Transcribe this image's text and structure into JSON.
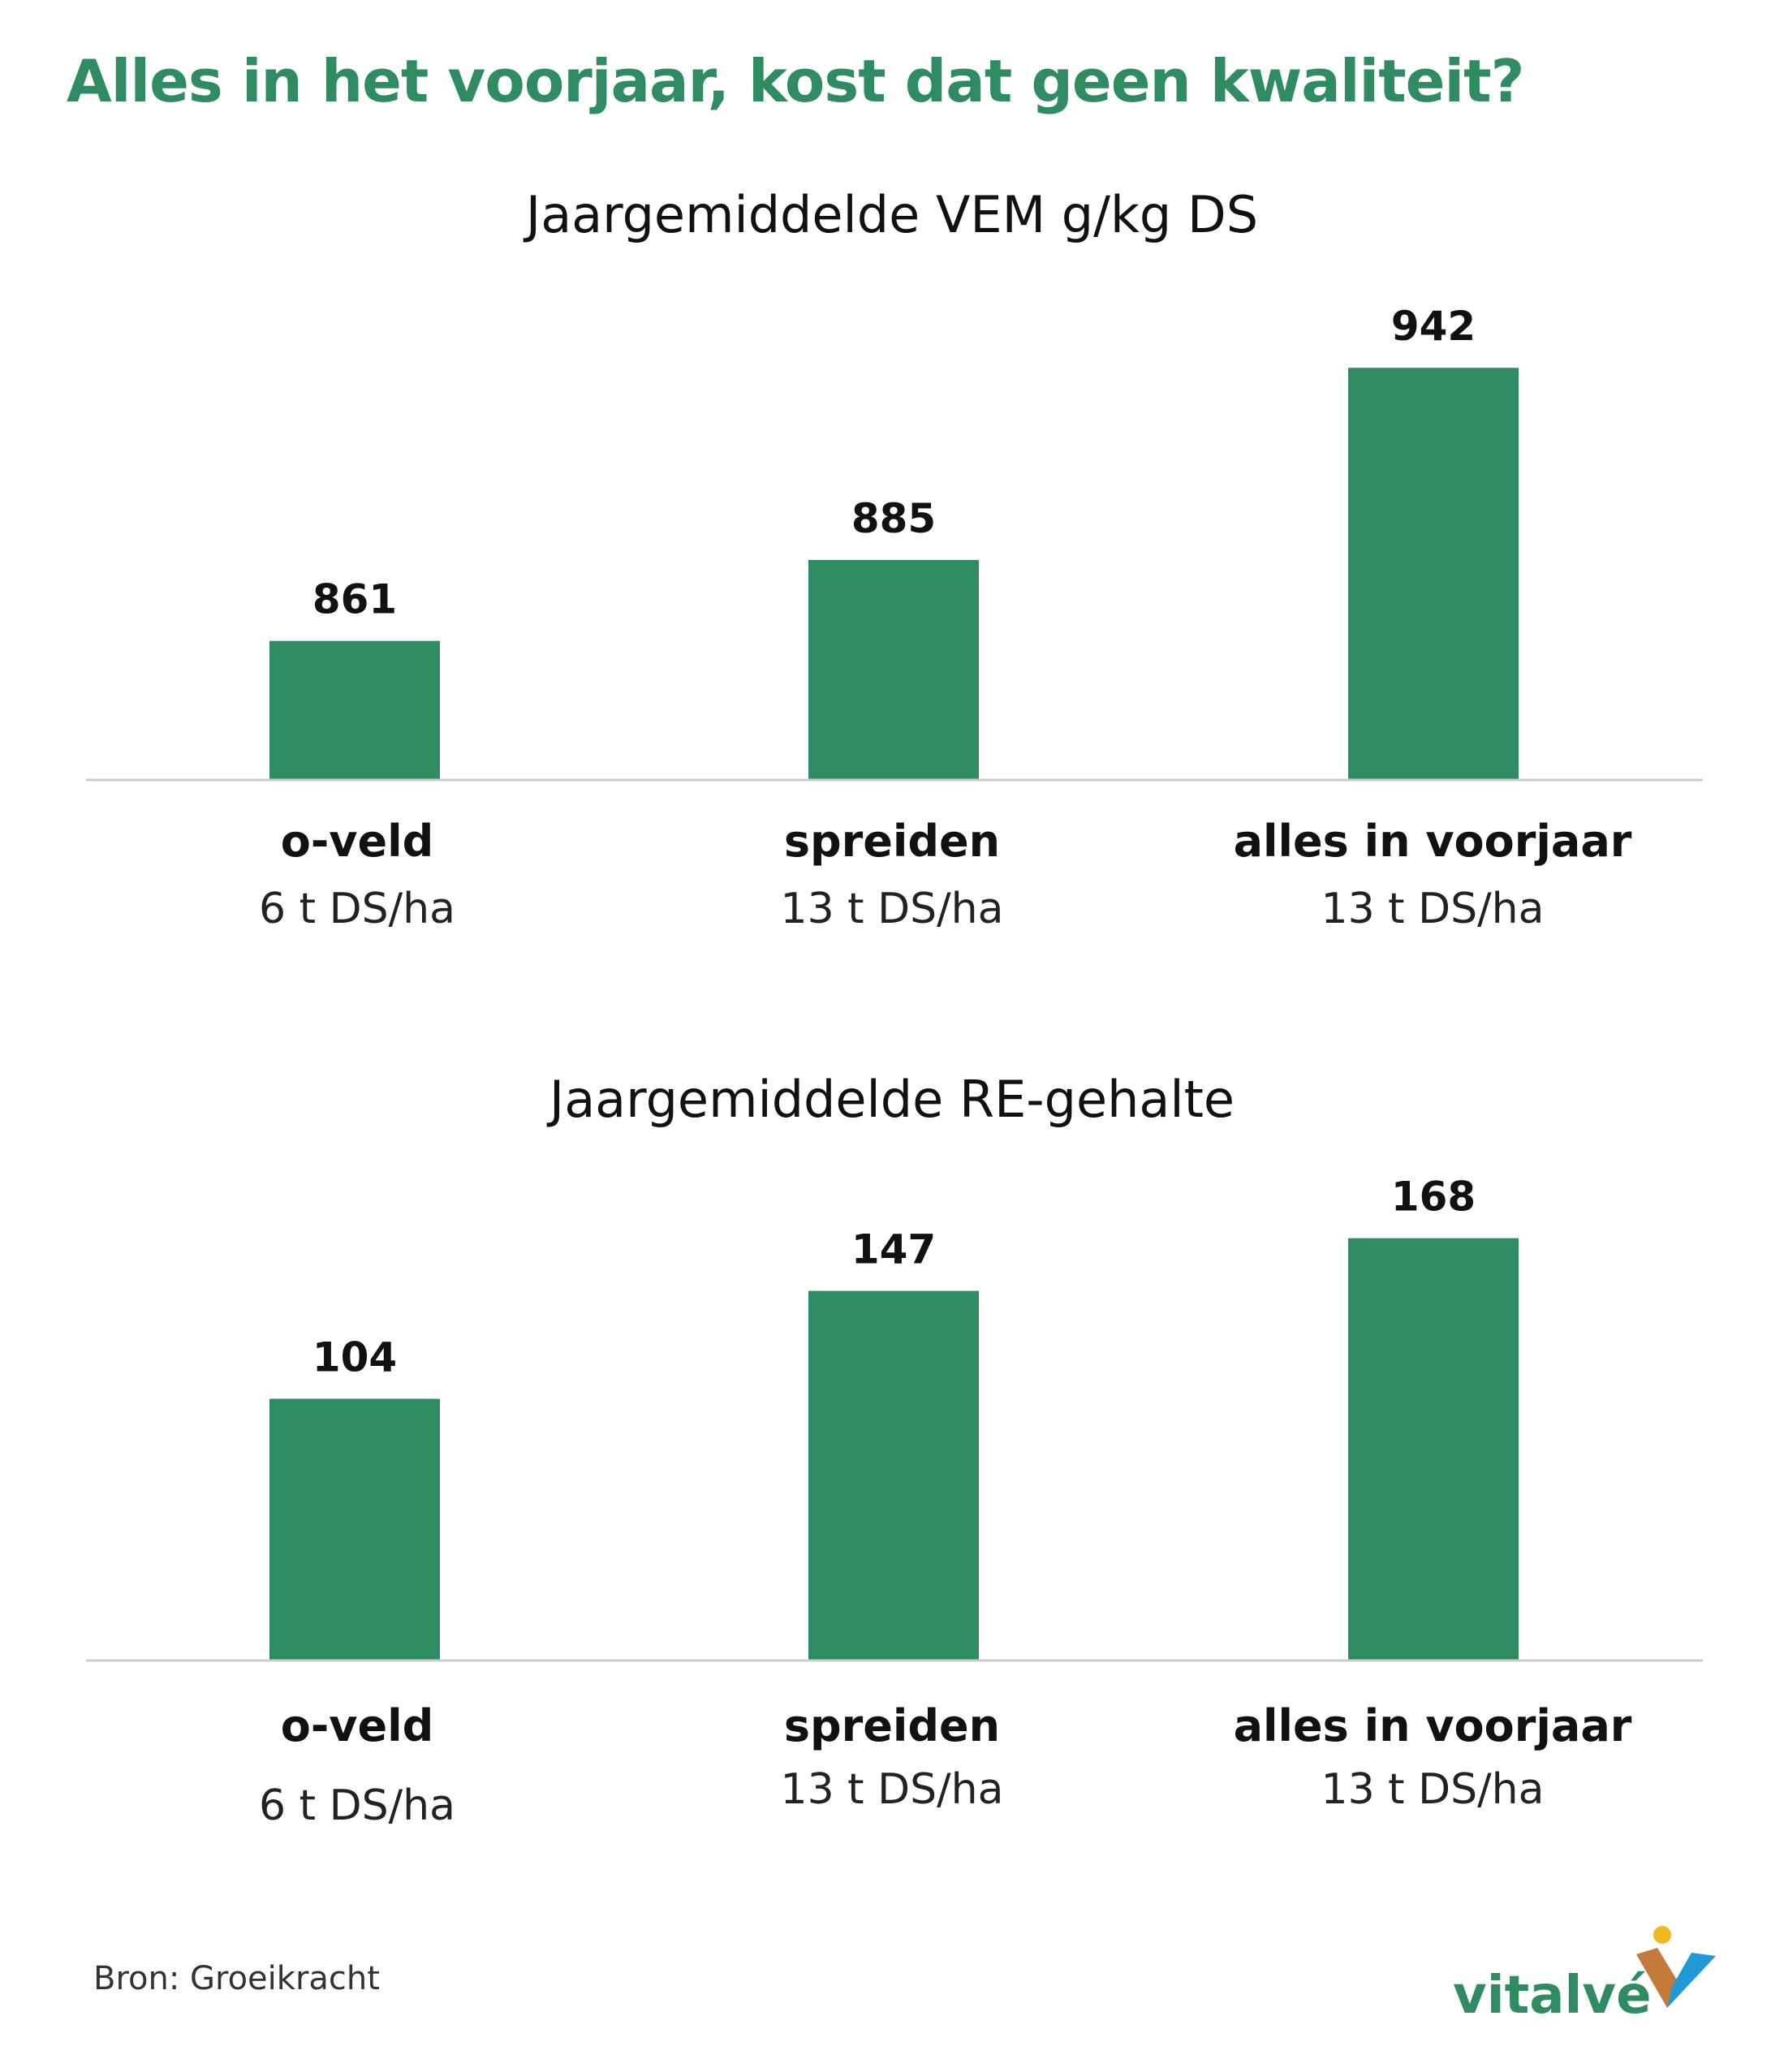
{
  "headline": "Alles in het voorjaar, kost dat geen kwaliteit?",
  "colors": {
    "bar": "#2e8b62",
    "headline": "#2e8b62",
    "axis": "#cccccc"
  },
  "chart_data": [
    {
      "type": "bar",
      "title": "Jaargemiddelde VEM g/kg DS",
      "categories": [
        "o-veld",
        "spreiden",
        "alles in voorjaar"
      ],
      "category_sublabels": [
        "6 t DS/ha",
        "13 t DS/ha",
        "13 t DS/ha"
      ],
      "values": [
        861,
        885,
        942
      ],
      "data_labels": [
        "861",
        "885",
        "942"
      ],
      "ylim": [
        820,
        950
      ],
      "grid": false,
      "legend": "none"
    },
    {
      "type": "bar",
      "title": "Jaargemiddelde RE-gehalte",
      "categories": [
        "o-veld",
        "spreiden",
        "alles in voorjaar"
      ],
      "category_sublabels": [
        "6 t DS/ha",
        "13 t DS/ha",
        "13 t DS/ha"
      ],
      "values": [
        104,
        147,
        168
      ],
      "data_labels": [
        "104",
        "147",
        "168"
      ],
      "ylim": [
        0,
        186
      ],
      "grid": false,
      "legend": "none"
    }
  ],
  "source": "Bron: Groeikracht",
  "logo": {
    "text": "vitalvé",
    "icon": "vitalve-v-logo-icon"
  }
}
